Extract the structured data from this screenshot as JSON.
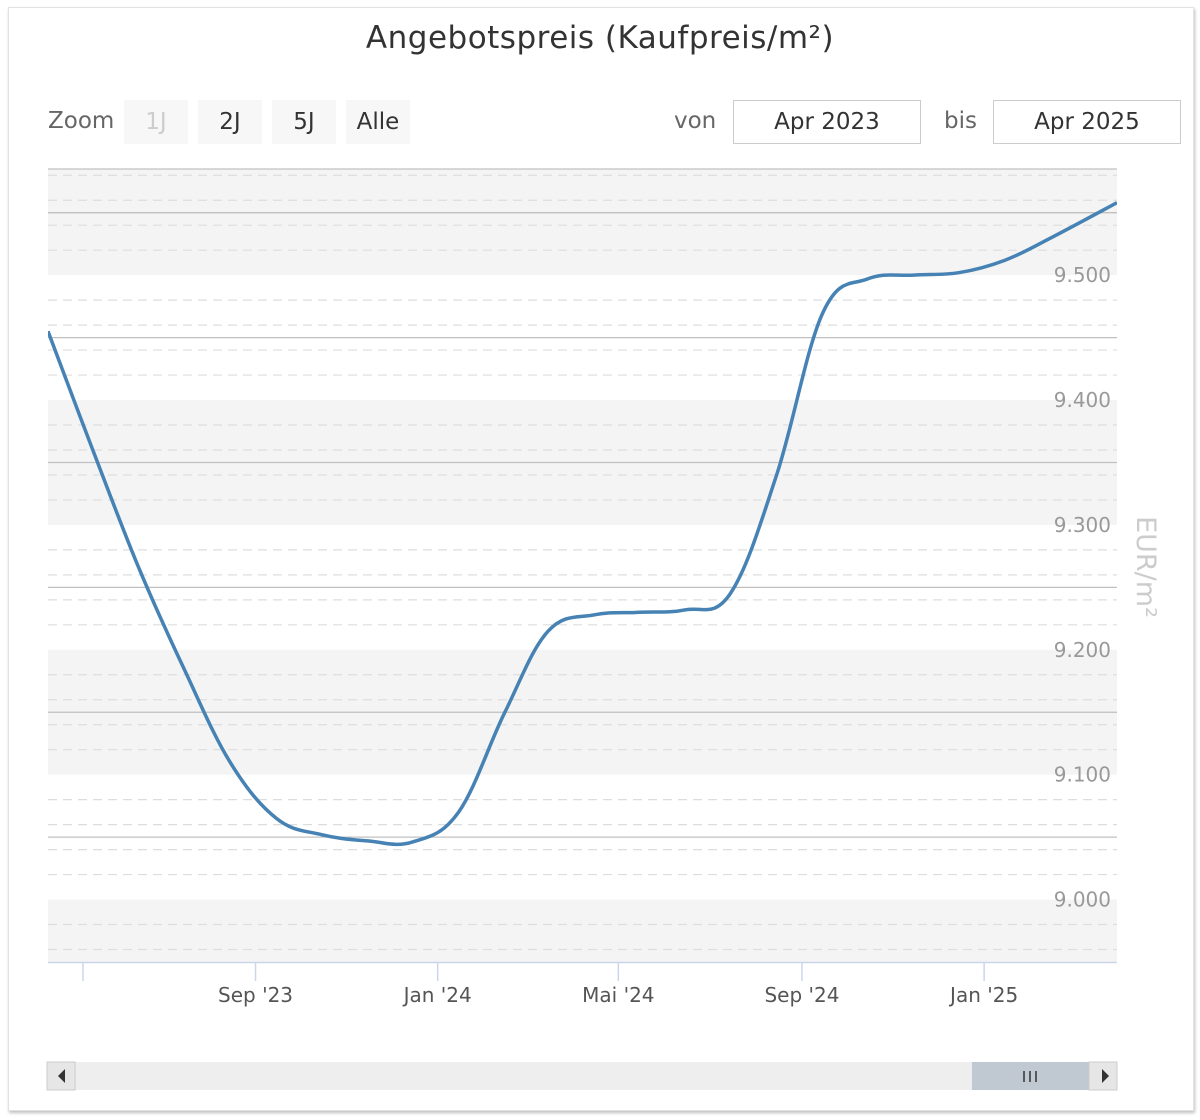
{
  "title": "Angebotspreis (Kaufpreis/m²)",
  "range_selector": {
    "zoom_label": "Zoom",
    "buttons": [
      {
        "label": "1J",
        "disabled": true
      },
      {
        "label": "2J",
        "disabled": false
      },
      {
        "label": "5J",
        "disabled": false
      },
      {
        "label": "Alle",
        "disabled": false
      }
    ],
    "from_label": "von",
    "from_value": "Apr 2023",
    "to_label": "bis",
    "to_value": "Apr 2025"
  },
  "scrollbar": {
    "left_arrow_icon": "triangle-left-icon",
    "right_arrow_icon": "triangle-right-icon",
    "grip_icon": "grip-lines-icon"
  },
  "colors": {
    "line": "#4682b4",
    "band": "#f4f4f4",
    "grid_major": "#c0c0c0",
    "grid_minor": "#dddddd"
  },
  "chart_data": {
    "type": "line",
    "title": "Angebotspreis (Kaufpreis/m²)",
    "ylabel": "EUR/m²",
    "xlabel": "",
    "x_range": [
      "2023-04-15",
      "2025-03-31"
    ],
    "ylim": [
      8950,
      9585
    ],
    "y_ticks": [
      9000,
      9100,
      9200,
      9300,
      9400,
      9500
    ],
    "y_tick_labels": [
      "9.000",
      "9.100",
      "9.200",
      "9.300",
      "9.400",
      "9.500"
    ],
    "x_ticks": [
      "2023-09-01",
      "2024-01-01",
      "2024-05-01",
      "2024-09-01",
      "2025-01-01"
    ],
    "x_tick_labels": [
      "Sep '23",
      "Jan '24",
      "Mai '24",
      "Sep '24",
      "Jan '25"
    ],
    "legend": "none",
    "grid": true,
    "series": [
      {
        "name": "",
        "points": [
          {
            "x": "2023-04-15",
            "y": 9455
          },
          {
            "x": "2023-05-15",
            "y": 9360
          },
          {
            "x": "2023-06-15",
            "y": 9265
          },
          {
            "x": "2023-07-15",
            "y": 9185
          },
          {
            "x": "2023-08-15",
            "y": 9110
          },
          {
            "x": "2023-09-15",
            "y": 9065
          },
          {
            "x": "2023-10-15",
            "y": 9052
          },
          {
            "x": "2023-11-15",
            "y": 9047
          },
          {
            "x": "2023-12-15",
            "y": 9046
          },
          {
            "x": "2024-01-15",
            "y": 9070
          },
          {
            "x": "2024-02-15",
            "y": 9150
          },
          {
            "x": "2024-03-15",
            "y": 9215
          },
          {
            "x": "2024-04-15",
            "y": 9228
          },
          {
            "x": "2024-05-15",
            "y": 9230
          },
          {
            "x": "2024-06-15",
            "y": 9232
          },
          {
            "x": "2024-07-15",
            "y": 9245
          },
          {
            "x": "2024-08-15",
            "y": 9340
          },
          {
            "x": "2024-09-15",
            "y": 9470
          },
          {
            "x": "2024-10-15",
            "y": 9497
          },
          {
            "x": "2024-11-15",
            "y": 9500
          },
          {
            "x": "2024-12-15",
            "y": 9502
          },
          {
            "x": "2025-01-15",
            "y": 9512
          },
          {
            "x": "2025-02-15",
            "y": 9530
          },
          {
            "x": "2025-03-31",
            "y": 9558
          }
        ]
      }
    ]
  }
}
